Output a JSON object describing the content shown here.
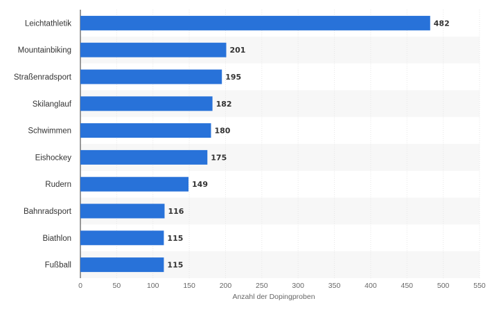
{
  "chart_data": {
    "type": "bar",
    "orientation": "horizontal",
    "categories": [
      "Leichtathletik",
      "Mountainbiking",
      "Straßenradsport",
      "Skilanglauf",
      "Schwimmen",
      "Eishockey",
      "Rudern",
      "Bahnradsport",
      "Biathlon",
      "Fußball"
    ],
    "values": [
      482,
      201,
      195,
      182,
      180,
      175,
      149,
      116,
      115,
      115
    ],
    "xlabel": "Anzahl der Dopingproben",
    "ylabel": "",
    "xlim": [
      0,
      550
    ],
    "xticks": [
      0,
      50,
      100,
      150,
      200,
      250,
      300,
      350,
      400,
      450,
      500,
      550
    ],
    "grid": true,
    "legend": "none",
    "bar_color": "#2872d9",
    "band_color": "#f7f7f7"
  }
}
